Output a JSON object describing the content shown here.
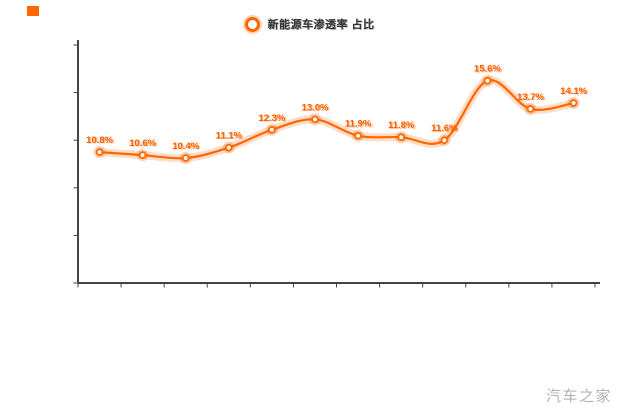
{
  "page": {
    "background": "#ffffff"
  },
  "header": {
    "title_bullet_color": "#ff6600"
  },
  "legend": {
    "label": "新能源车渗透率 占比",
    "marker_color": "#ff6600"
  },
  "watermark": {
    "text": "汽车之家",
    "color": "#b0b4b7"
  },
  "colors": {
    "line": "#ff6600",
    "line_glow": "rgba(255,102,0,0.22)",
    "marker_ring": "#ff6600",
    "marker_halo": "rgba(255,102,0,0.30)",
    "axis": "#444444",
    "point_label": "#ff5e00"
  },
  "chart_data": {
    "type": "line",
    "x": [
      1,
      2,
      3,
      4,
      5,
      6,
      7,
      8,
      9,
      10,
      11,
      12
    ],
    "values": [
      10.8,
      10.6,
      10.4,
      11.1,
      12.3,
      13.0,
      11.9,
      11.8,
      11.6,
      15.6,
      13.7,
      14.1
    ],
    "point_labels": [
      "10.8%",
      "10.6%",
      "10.4%",
      "11.1%",
      "12.3%",
      "13.0%",
      "11.9%",
      "11.8%",
      "11.6%",
      "15.6%",
      "13.7%",
      "14.1%"
    ],
    "title": "",
    "xlabel": "",
    "ylabel": "",
    "ylim": [
      2,
      18
    ],
    "grid": false,
    "legend_position": "top-center",
    "x_tick_labels": [],
    "y_tick_labels": [],
    "y_tick_count": 6,
    "x_tick_count": 13
  }
}
